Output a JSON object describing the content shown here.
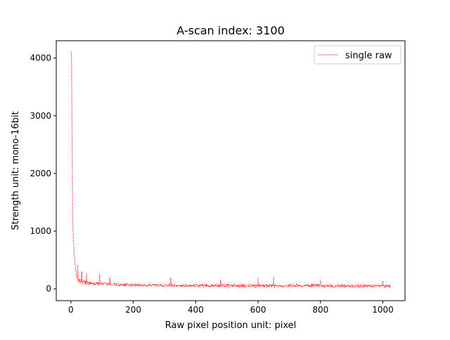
{
  "chart_data": {
    "type": "line",
    "title": "A-scan index: 3100",
    "xlabel": "Raw pixel position unit: pixel",
    "ylabel": "Strength unit: mono-16bit",
    "xlim": [
      -47,
      1071
    ],
    "ylim": [
      -205,
      4300
    ],
    "xticks": [
      0,
      200,
      400,
      600,
      800,
      1000
    ],
    "yticks": [
      0,
      1000,
      2000,
      3000,
      4000
    ],
    "grid": false,
    "legend_position": "top-right",
    "series": [
      {
        "name": "single raw",
        "color": "#ff0000",
        "line_style": "dotted",
        "x_start": 0,
        "x_step": 1,
        "points": 1024,
        "anchor_values": [
          [
            0,
            4100
          ],
          [
            1,
            4095
          ],
          [
            2,
            3900
          ],
          [
            3,
            3300
          ],
          [
            4,
            2500
          ],
          [
            5,
            1900
          ],
          [
            6,
            1300
          ],
          [
            7,
            1000
          ],
          [
            8,
            850
          ],
          [
            9,
            760
          ],
          [
            10,
            650
          ],
          [
            12,
            500
          ],
          [
            14,
            380
          ],
          [
            16,
            300
          ],
          [
            18,
            230
          ],
          [
            20,
            180
          ],
          [
            25,
            150
          ],
          [
            30,
            130
          ],
          [
            40,
            115
          ],
          [
            60,
            100
          ],
          [
            80,
            95
          ],
          [
            100,
            90
          ],
          [
            150,
            75
          ],
          [
            200,
            65
          ],
          [
            300,
            60
          ],
          [
            400,
            55
          ],
          [
            500,
            55
          ],
          [
            600,
            55
          ],
          [
            700,
            55
          ],
          [
            800,
            55
          ],
          [
            900,
            50
          ],
          [
            1000,
            50
          ],
          [
            1023,
            50
          ]
        ],
        "noise_amplitude": 50,
        "sample_peaks": [
          [
            22,
            420
          ],
          [
            35,
            300
          ],
          [
            50,
            260
          ],
          [
            92,
            240
          ],
          [
            125,
            190
          ],
          [
            320,
            190
          ],
          [
            480,
            150
          ],
          [
            600,
            170
          ],
          [
            650,
            190
          ],
          [
            800,
            150
          ],
          [
            1000,
            140
          ]
        ]
      }
    ]
  }
}
